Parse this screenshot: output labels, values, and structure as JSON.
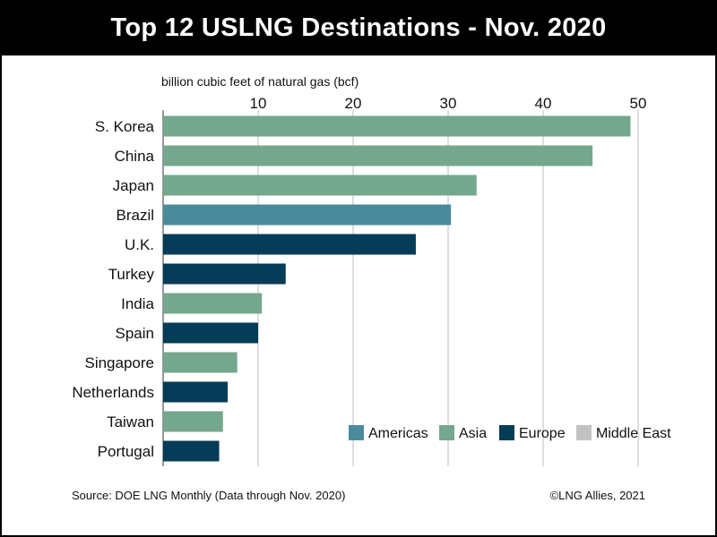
{
  "title": "Top 12 USLNG Destinations - Nov. 2020",
  "footer": {
    "source": "Source: DOE LNG Monthly (Data through Nov. 2020)",
    "credit": "©LNG Allies, 2021"
  },
  "colors": {
    "Americas": "#4a8a9c",
    "Asia": "#74a78d",
    "Europe": "#053c57",
    "Middle East": "#c2c2c2"
  },
  "chart_data": {
    "type": "bar",
    "orientation": "horizontal",
    "title": "Top 12 USLNG Destinations - Nov. 2020",
    "xlabel": "billion cubic feet of natural gas (bcf)",
    "ylabel": "",
    "xlim": [
      0,
      50
    ],
    "xticks": [
      10,
      20,
      30,
      40,
      50
    ],
    "grid": true,
    "legend_position": "bottom-right",
    "legend": [
      "Americas",
      "Asia",
      "Europe",
      "Middle East"
    ],
    "categories": [
      "S. Korea",
      "China",
      "Japan",
      "Brazil",
      "U.K.",
      "Turkey",
      "India",
      "Spain",
      "Singapore",
      "Netherlands",
      "Taiwan",
      "Portugal"
    ],
    "values": [
      49.2,
      45.2,
      33.0,
      30.3,
      26.6,
      12.9,
      10.4,
      10.0,
      7.8,
      6.8,
      6.3,
      5.9
    ],
    "regions": [
      "Asia",
      "Asia",
      "Asia",
      "Americas",
      "Europe",
      "Europe",
      "Asia",
      "Europe",
      "Asia",
      "Europe",
      "Asia",
      "Europe"
    ]
  }
}
